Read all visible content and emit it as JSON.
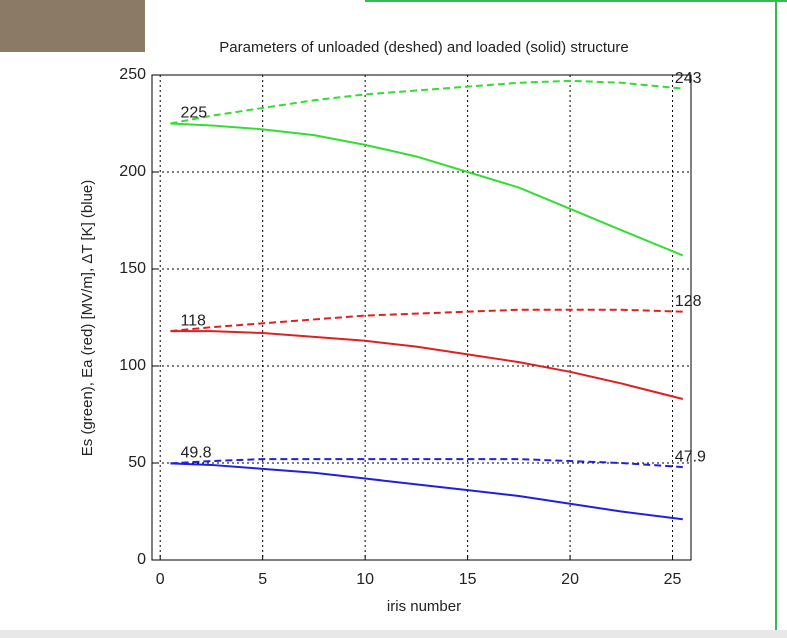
{
  "chart_data": {
    "type": "line",
    "title": "Parameters of unloaded (deshed) and loaded (solid) structure",
    "xlabel": "iris number",
    "ylabel": "Es (green), Ea (red) [MV/m], ΔT [K] (blue)",
    "x": [
      0.5,
      2.5,
      5,
      7.5,
      10,
      12.5,
      15,
      17.5,
      20,
      22.5,
      25.5
    ],
    "xlim": [
      -0.4,
      25.9
    ],
    "xticks": [
      0,
      5,
      10,
      15,
      20,
      25
    ],
    "ylim": [
      0,
      250
    ],
    "yticks": [
      0,
      50,
      100,
      150,
      200,
      250
    ],
    "grid": true,
    "series": [
      {
        "color": "#33dd33",
        "style": "dashed",
        "values": [
          225,
          229,
          233,
          237,
          240,
          242,
          244,
          246,
          247,
          246,
          243
        ],
        "value_labels": [
          "225",
          null,
          null,
          null,
          null,
          null,
          null,
          null,
          null,
          null,
          "243"
        ]
      },
      {
        "color": "#33dd33",
        "style": "solid",
        "values": [
          225,
          224,
          222,
          219,
          214,
          208,
          200,
          192,
          181,
          170,
          157
        ]
      },
      {
        "color": "#e02020",
        "style": "dashed",
        "values": [
          118,
          120,
          122,
          124,
          126,
          127,
          128,
          129,
          129,
          129,
          128
        ],
        "value_labels": [
          "118",
          null,
          null,
          null,
          null,
          null,
          null,
          null,
          null,
          null,
          "128"
        ]
      },
      {
        "color": "#e02020",
        "style": "solid",
        "values": [
          118,
          118,
          117,
          115,
          113,
          110,
          106,
          102,
          97,
          91,
          83
        ]
      },
      {
        "color": "#2020e0",
        "style": "dashed",
        "values": [
          49.8,
          51,
          52,
          52,
          52,
          52,
          52,
          52,
          51,
          50,
          47.9
        ],
        "value_labels": [
          "49.8",
          null,
          null,
          null,
          null,
          null,
          null,
          null,
          null,
          null,
          "47.9"
        ]
      },
      {
        "color": "#2020e0",
        "style": "solid",
        "values": [
          49.8,
          49,
          47,
          45,
          42,
          39,
          36,
          33,
          29,
          25,
          21
        ]
      }
    ]
  }
}
